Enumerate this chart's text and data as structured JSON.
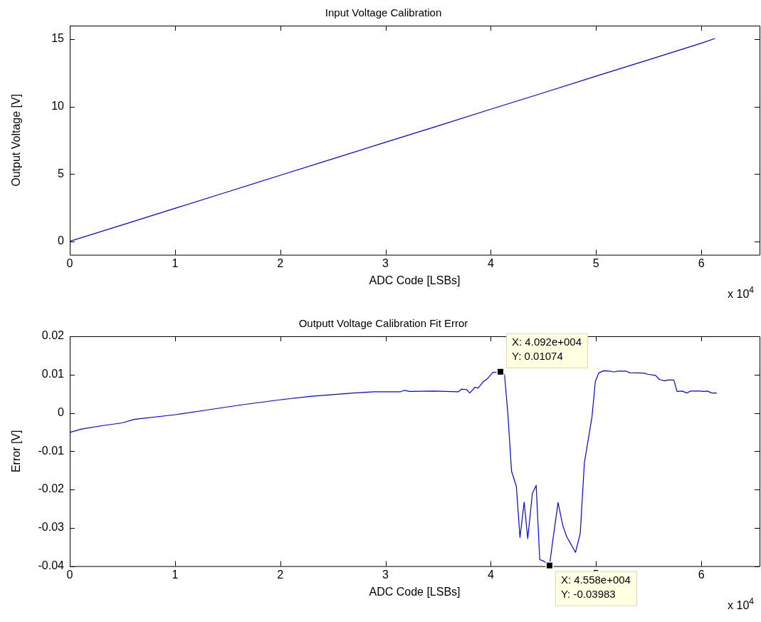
{
  "chart_data": [
    {
      "type": "line",
      "title": "Input Voltage Calibration",
      "xlabel": "ADC Code [LSBs]",
      "ylabel": "Output Voltage [V]",
      "color": "#0000ff",
      "grid": false,
      "x": [
        0,
        0.5,
        1,
        1.5,
        2,
        2.5,
        3,
        3.5,
        4,
        4.5,
        5,
        5.5,
        6,
        6.13
      ],
      "values": [
        0,
        1.22,
        2.45,
        3.67,
        4.9,
        6.12,
        7.35,
        8.57,
        9.8,
        11.02,
        12.25,
        13.47,
        14.7,
        15.05
      ],
      "xlim": [
        0,
        6.5536
      ],
      "xticks": [
        0,
        1,
        2,
        3,
        4,
        5,
        6
      ],
      "ylim": [
        -1,
        16
      ],
      "yticks": [
        0,
        5,
        10,
        15
      ],
      "annotations": [
        "x 10$^{4}$"
      ]
    },
    {
      "type": "line",
      "title": "Outputt Voltage Calibration Fit Error",
      "xlabel": "ADC Code [LSBs]",
      "ylabel": "Error [V]",
      "color": "#0000ff",
      "grid": false,
      "x": [
        0,
        0.113,
        0.316,
        0.5,
        0.61,
        0.99,
        1.29,
        1.63,
        1.99,
        2.28,
        2.69,
        2.89,
        3.14,
        3.18,
        3.23,
        3.46,
        3.69,
        3.72,
        3.77,
        3.8,
        3.85,
        3.88,
        3.93,
        3.97,
        4.02,
        4.092,
        4.13,
        4.163,
        4.197,
        4.243,
        4.277,
        4.317,
        4.351,
        4.395,
        4.431,
        4.465,
        4.497,
        4.558,
        4.594,
        4.639,
        4.685,
        4.721,
        4.805,
        4.85,
        4.889,
        4.923,
        4.961,
        4.993,
        5.025,
        5.07,
        5.127,
        5.172,
        5.206,
        5.286,
        5.32,
        5.456,
        5.49,
        5.565,
        5.603,
        5.649,
        5.683,
        5.739,
        5.769,
        5.819,
        5.864,
        5.898,
        5.989,
        6.023,
        6.057,
        6.102,
        6.147
      ],
      "values": [
        -0.0051,
        -0.0042,
        -0.0033,
        -0.0026,
        -0.0017,
        -0.0005,
        0.0007,
        0.0021,
        0.0034,
        0.0043,
        0.0052,
        0.0055,
        0.0055,
        0.0059,
        0.0056,
        0.0057,
        0.0055,
        0.0062,
        0.0061,
        0.0052,
        0.0067,
        0.0065,
        0.0082,
        0.009,
        0.0106,
        0.0107,
        0.0101,
        -0.0005,
        -0.0152,
        -0.0192,
        -0.0325,
        -0.0233,
        -0.0328,
        -0.021,
        -0.0189,
        -0.0383,
        -0.0386,
        -0.0398,
        -0.0323,
        -0.0234,
        -0.0295,
        -0.0323,
        -0.0364,
        -0.0314,
        -0.013,
        -0.0074,
        -0.0011,
        0.0082,
        0.0104,
        0.011,
        0.0109,
        0.0107,
        0.0109,
        0.0109,
        0.0105,
        0.0104,
        0.0101,
        0.0098,
        0.0087,
        0.0084,
        0.0086,
        0.0086,
        0.0056,
        0.0057,
        0.0052,
        0.0057,
        0.0057,
        0.0056,
        0.0057,
        0.0052,
        0.0052
      ],
      "xlim": [
        0,
        6.5536
      ],
      "xticks": [
        0,
        1,
        2,
        3,
        4,
        5,
        6
      ],
      "ylim": [
        -0.04,
        0.02
      ],
      "yticks": [
        -0.04,
        -0.03,
        -0.02,
        -0.01,
        0,
        0.01,
        0.02
      ],
      "annotations": [
        {
          "text": "X: 4.092e+004\nY: 0.01074",
          "x": 4.092,
          "y": 0.01074
        },
        {
          "text": "X: 4.558e+004\nY: -0.03983",
          "x": 4.558,
          "y": -0.03983
        },
        "x 10$^{4}$"
      ]
    }
  ]
}
